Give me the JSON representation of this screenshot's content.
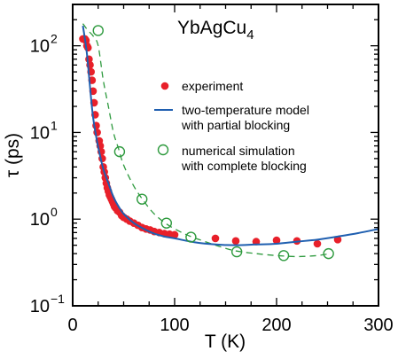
{
  "chart_data": {
    "type": "scatter",
    "annotation": "YbAgCu",
    "annotation_sub": "4",
    "xlabel": "T (K)",
    "ylabel": "τ (ps)",
    "xlim": [
      0,
      300
    ],
    "ylim": [
      0.1,
      300
    ],
    "yscale": "log",
    "grid": false,
    "legend_position": "upper-right inside plot",
    "xticks": [
      0,
      100,
      200,
      300
    ],
    "xtick_labels": [
      "0",
      "100",
      "200",
      "300"
    ],
    "yticks": [
      0.1,
      1,
      10,
      100
    ],
    "ytick_labels": [
      {
        "base": "10",
        "exp": "−1"
      },
      {
        "base": "10",
        "exp": "0"
      },
      {
        "base": "10",
        "exp": "1"
      },
      {
        "base": "10",
        "exp": "2"
      }
    ],
    "colors": {
      "experiment": "#e8202a",
      "model": "#1f5fb0",
      "simulation": "#2e9a3e",
      "axes": "#000000"
    },
    "series": [
      {
        "name": "experiment",
        "kind": "filled-dots",
        "points": [
          [
            10,
            120
          ],
          [
            12,
            120
          ],
          [
            13,
            115
          ],
          [
            14,
            100
          ],
          [
            15,
            95
          ],
          [
            16,
            70
          ],
          [
            17,
            60
          ],
          [
            18,
            50
          ],
          [
            19,
            40
          ],
          [
            20,
            30
          ],
          [
            21,
            22
          ],
          [
            22,
            16
          ],
          [
            23,
            12
          ],
          [
            24,
            10
          ],
          [
            26,
            8
          ],
          [
            27,
            7
          ],
          [
            28,
            6
          ],
          [
            29,
            5
          ],
          [
            30,
            4
          ],
          [
            31,
            3.5
          ],
          [
            32,
            3
          ],
          [
            33,
            2.6
          ],
          [
            34,
            2.3
          ],
          [
            35,
            2.1
          ],
          [
            36,
            1.9
          ],
          [
            37,
            1.8
          ],
          [
            38,
            1.7
          ],
          [
            39,
            1.6
          ],
          [
            40,
            1.5
          ],
          [
            41,
            1.4
          ],
          [
            42,
            1.35
          ],
          [
            44,
            1.25
          ],
          [
            46,
            1.2
          ],
          [
            48,
            1.1
          ],
          [
            50,
            1.05
          ],
          [
            53,
            1.0
          ],
          [
            56,
            0.95
          ],
          [
            60,
            0.9
          ],
          [
            64,
            0.85
          ],
          [
            68,
            0.8
          ],
          [
            72,
            0.77
          ],
          [
            76,
            0.75
          ],
          [
            80,
            0.72
          ],
          [
            85,
            0.7
          ],
          [
            90,
            0.68
          ],
          [
            95,
            0.67
          ],
          [
            100,
            0.66
          ],
          [
            140,
            0.6
          ],
          [
            160,
            0.56
          ],
          [
            180,
            0.55
          ],
          [
            200,
            0.57
          ],
          [
            220,
            0.56
          ],
          [
            240,
            0.52
          ],
          [
            260,
            0.58
          ]
        ]
      },
      {
        "name": "two-temperature model",
        "name_line2": "with partial blocking",
        "kind": "solid-line",
        "points": [
          [
            10,
            170
          ],
          [
            12,
            120
          ],
          [
            14,
            80
          ],
          [
            16,
            45
          ],
          [
            18,
            25
          ],
          [
            20,
            15
          ],
          [
            23,
            9
          ],
          [
            26,
            6
          ],
          [
            30,
            3.8
          ],
          [
            35,
            2.6
          ],
          [
            40,
            1.8
          ],
          [
            45,
            1.4
          ],
          [
            50,
            1.15
          ],
          [
            60,
            0.9
          ],
          [
            70,
            0.77
          ],
          [
            80,
            0.68
          ],
          [
            90,
            0.63
          ],
          [
            100,
            0.6
          ],
          [
            120,
            0.54
          ],
          [
            140,
            0.51
          ],
          [
            160,
            0.5
          ],
          [
            180,
            0.51
          ],
          [
            200,
            0.52
          ],
          [
            220,
            0.55
          ],
          [
            240,
            0.58
          ],
          [
            260,
            0.63
          ],
          [
            280,
            0.69
          ],
          [
            300,
            0.77
          ]
        ]
      },
      {
        "name": "numerical simulation",
        "name_line2": "with complete blocking",
        "kind": "open-circles-dashed",
        "markers": [
          [
            25,
            150
          ],
          [
            46,
            6
          ],
          [
            68,
            1.7
          ],
          [
            92,
            0.9
          ],
          [
            116,
            0.62
          ],
          [
            161,
            0.42
          ],
          [
            207,
            0.38
          ],
          [
            251,
            0.4
          ]
        ],
        "curve": [
          [
            10,
            180
          ],
          [
            15,
            150
          ],
          [
            20,
            130
          ],
          [
            25,
            100
          ],
          [
            30,
            40
          ],
          [
            35,
            20
          ],
          [
            40,
            10
          ],
          [
            45,
            6.5
          ],
          [
            50,
            4.2
          ],
          [
            60,
            2.4
          ],
          [
            70,
            1.6
          ],
          [
            80,
            1.15
          ],
          [
            92,
            0.88
          ],
          [
            105,
            0.72
          ],
          [
            116,
            0.63
          ],
          [
            130,
            0.55
          ],
          [
            145,
            0.48
          ],
          [
            160,
            0.43
          ],
          [
            180,
            0.4
          ],
          [
            200,
            0.38
          ],
          [
            220,
            0.37
          ],
          [
            240,
            0.38
          ],
          [
            252,
            0.4
          ]
        ]
      }
    ]
  }
}
